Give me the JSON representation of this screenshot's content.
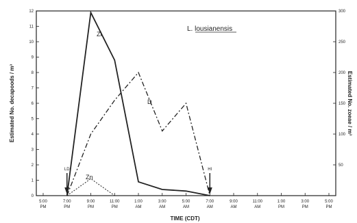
{
  "chart_data": {
    "type": "line",
    "title": "L. lousianensis",
    "xlabel": "TIME (CDT)",
    "ylabel_left": "Estimated No. decapoods / m³",
    "ylabel_right": "Estimated No. zoeae / m³",
    "x_categories": [
      "5:00 PM",
      "7:00 PM",
      "9:00 PM",
      "11:00 PM",
      "1:00 AM",
      "3:00 AM",
      "5:00 AM",
      "7:00 AM",
      "9:00 AM",
      "11:00 AM",
      "1:00 PM",
      "3:00 PM",
      "5:00 PM"
    ],
    "ylim_left": [
      0,
      12
    ],
    "yticks_left": [
      "0",
      "1",
      "2",
      "3",
      "4",
      "5",
      "6",
      "7",
      "8",
      "9",
      "10",
      "11",
      "12"
    ],
    "ylim_right": [
      0,
      300
    ],
    "yticks_right": [
      "50",
      "100",
      "150",
      "200",
      "250",
      "300"
    ],
    "series": [
      {
        "name": "Zl",
        "axis": "left",
        "style": "solid",
        "x": [
          "7:00 PM",
          "9:00 PM",
          "11:00 PM",
          "1:00 AM",
          "3:00 AM",
          "5:00 AM",
          "7:00 AM"
        ],
        "y": [
          0,
          11.9,
          8.8,
          0.9,
          0.4,
          0.3,
          0
        ]
      },
      {
        "name": "D",
        "axis": "right",
        "style": "dashdot",
        "x": [
          "7:00 PM",
          "9:00 PM",
          "11:00 PM",
          "1:00 AM",
          "3:00 AM",
          "5:00 AM",
          "7:00 AM"
        ],
        "y": [
          0,
          100,
          155,
          200,
          105,
          150,
          0
        ]
      },
      {
        "name": "Zn",
        "axis": "left",
        "style": "dotted",
        "x": [
          "7:00 PM",
          "9:00 PM",
          "11:00 PM"
        ],
        "y": [
          0,
          1.1,
          0
        ]
      }
    ],
    "annotations": [
      {
        "label": "LD",
        "x": "7:00 PM"
      },
      {
        "label": "HI",
        "x": "7:00 AM"
      }
    ],
    "grid": false,
    "legend": "none"
  }
}
